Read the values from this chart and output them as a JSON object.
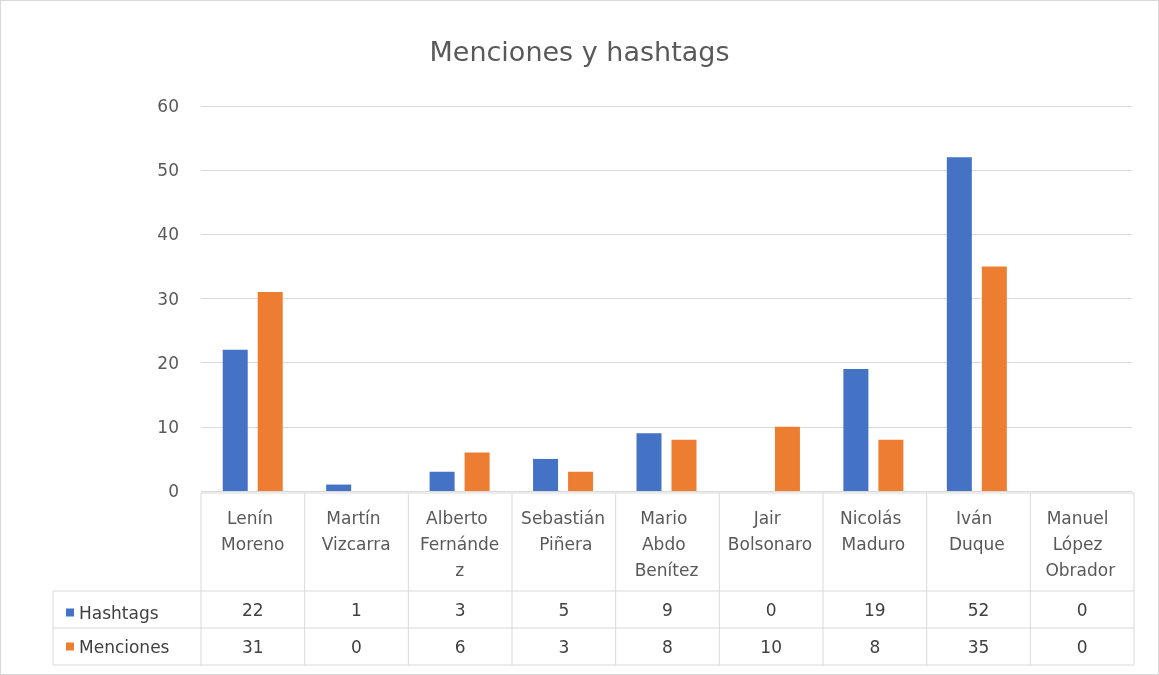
{
  "chart_data": {
    "type": "bar",
    "title": "Menciones y hashtags",
    "categories": [
      "Lenín Moreno",
      "Martín Vizcarra",
      "Alberto Fernández",
      "Sebastián Piñera",
      "Mario Abdo Benítez",
      "Jair Bolsonaro",
      "Nicolás Maduro",
      "Iván Duque",
      "Manuel López Obrador"
    ],
    "series": [
      {
        "name": "Hashtags",
        "color": "#4472c4",
        "values": [
          22,
          1,
          3,
          5,
          9,
          0,
          19,
          52,
          0
        ]
      },
      {
        "name": "Menciones",
        "color": "#ed7d31",
        "values": [
          31,
          0,
          6,
          3,
          8,
          10,
          8,
          35,
          0
        ]
      }
    ],
    "ylim": [
      0,
      60
    ],
    "yticks": [
      0,
      10,
      20,
      30,
      40,
      50,
      60
    ],
    "grid": "y",
    "legend": "bottom",
    "data_labels": true
  }
}
